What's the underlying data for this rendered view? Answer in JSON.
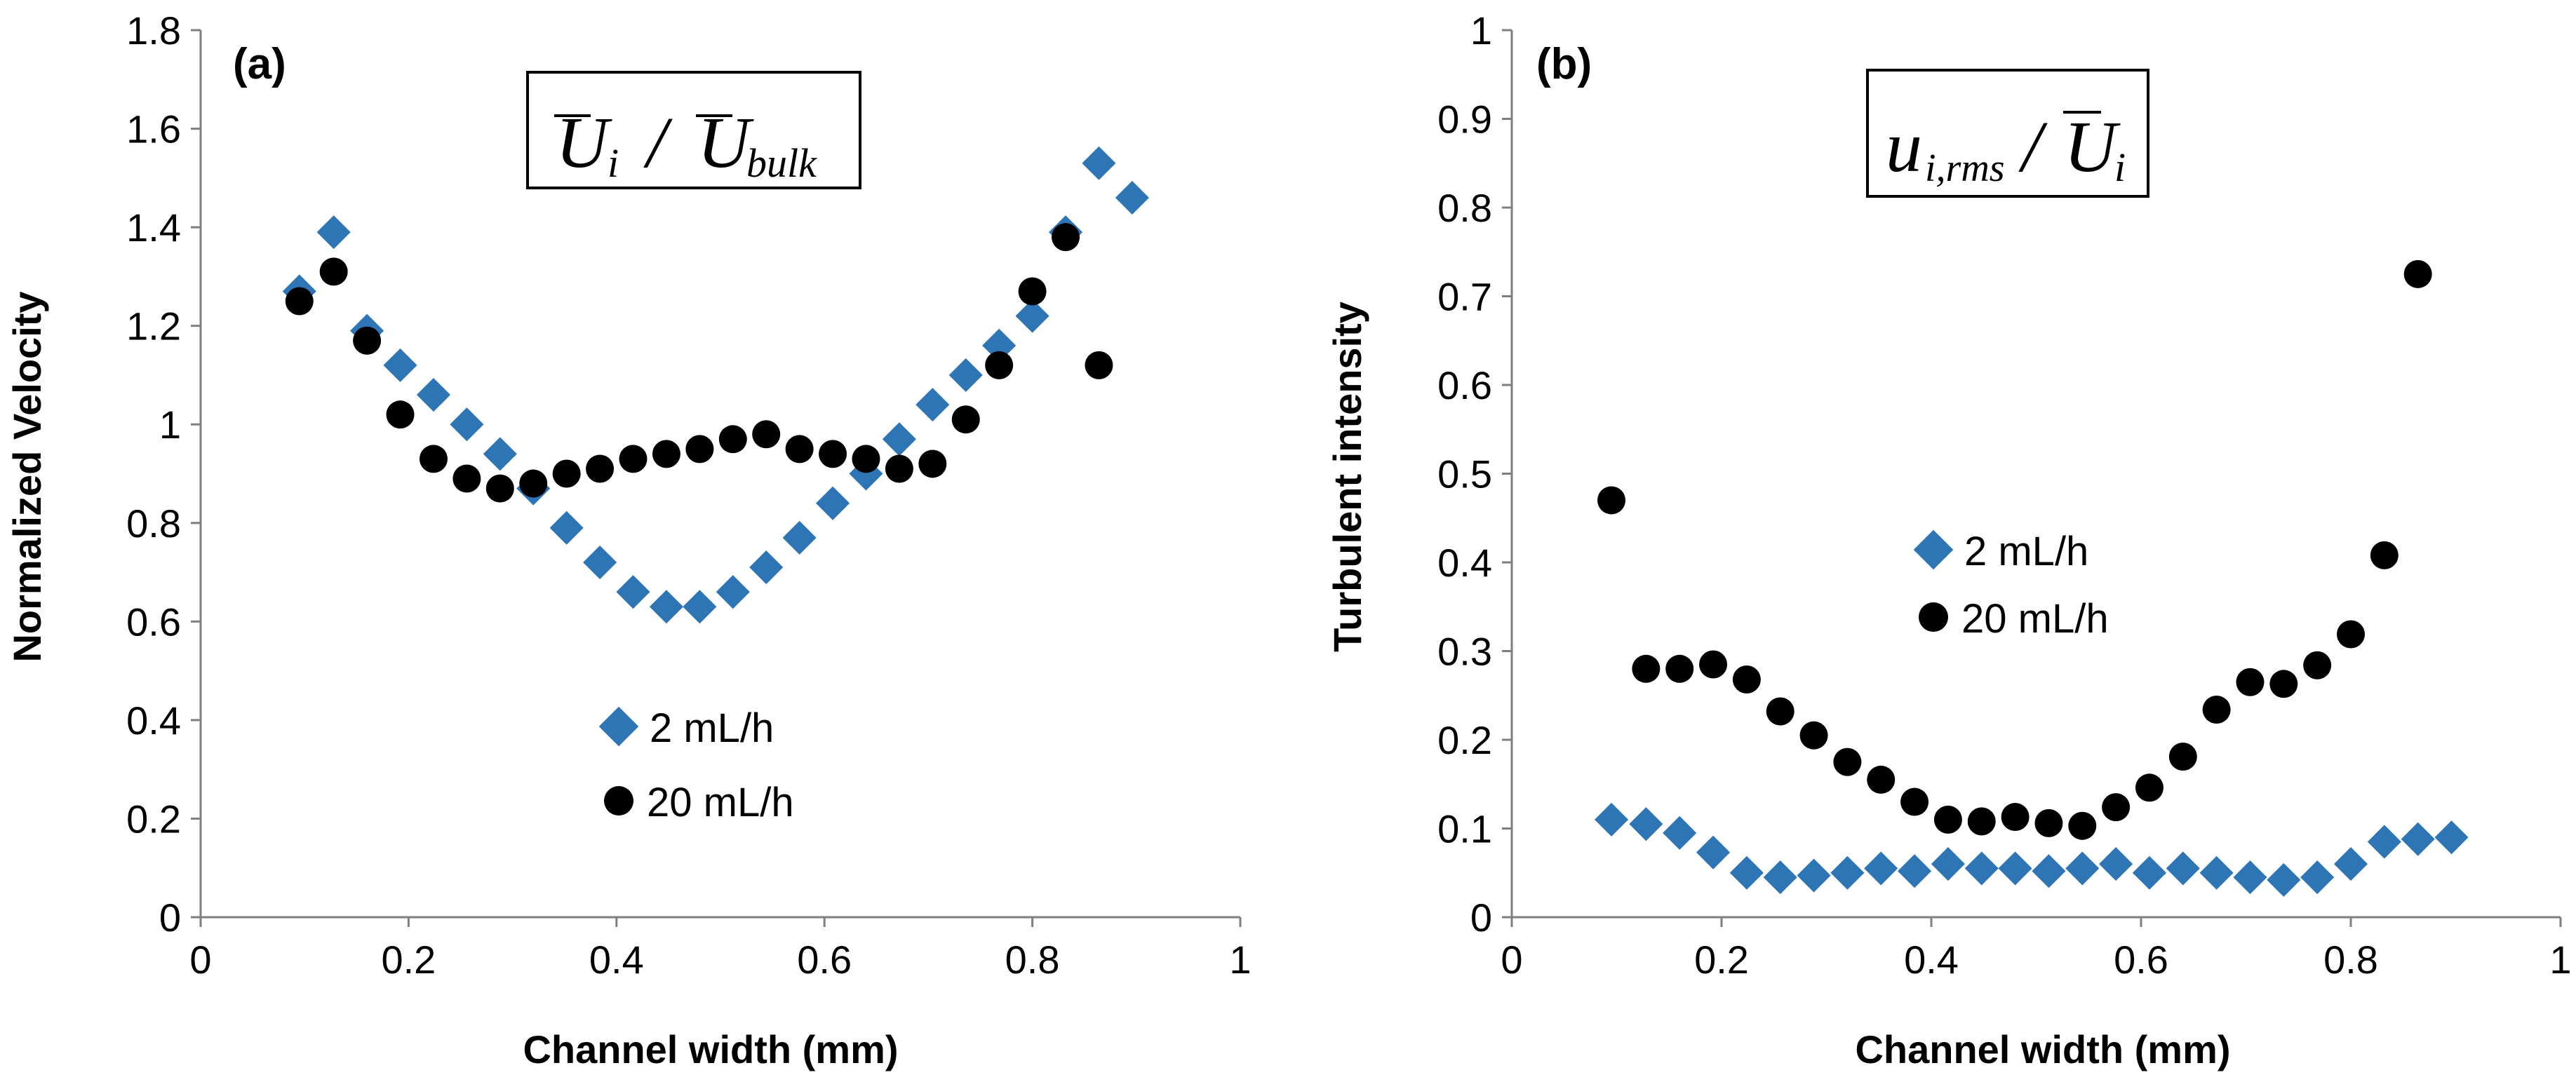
{
  "chart_data": [
    {
      "type": "scatter",
      "panel_label": "(a)",
      "formula": {
        "main1": "U",
        "sub1": "i",
        "slash": "/",
        "main2": "U",
        "sub2": "bulk"
      },
      "xlabel": "Channel width (mm)",
      "ylabel": "Normalized Velocity",
      "xlim": [
        0,
        1
      ],
      "ylim": [
        0,
        1.8
      ],
      "xticks": [
        "0",
        "0.2",
        "0.4",
        "0.6",
        "0.8",
        "1"
      ],
      "yticks": [
        "0",
        "0.2",
        "0.4",
        "0.6",
        "0.8",
        "1",
        "1.2",
        "1.4",
        "1.6",
        "1.8"
      ],
      "xtick_values": [
        0,
        0.2,
        0.4,
        0.6,
        0.8,
        1
      ],
      "ytick_values": [
        0,
        0.2,
        0.4,
        0.6,
        0.8,
        1,
        1.2,
        1.4,
        1.6,
        1.8
      ],
      "legend_position": "center-bottom",
      "series": [
        {
          "name": "2 mL/h",
          "marker": "diamond",
          "color": "#2E75B6",
          "x": [
            0.095,
            0.128,
            0.16,
            0.192,
            0.224,
            0.256,
            0.288,
            0.32,
            0.352,
            0.384,
            0.416,
            0.448,
            0.48,
            0.512,
            0.544,
            0.576,
            0.608,
            0.64,
            0.672,
            0.704,
            0.736,
            0.768,
            0.8,
            0.832,
            0.864,
            0.896
          ],
          "y": [
            1.27,
            1.39,
            1.19,
            1.12,
            1.06,
            1.0,
            0.94,
            0.87,
            0.79,
            0.72,
            0.66,
            0.63,
            0.63,
            0.66,
            0.71,
            0.77,
            0.84,
            0.9,
            0.97,
            1.04,
            1.1,
            1.16,
            1.22,
            1.39,
            1.53,
            1.46
          ]
        },
        {
          "name": "20 mL/h",
          "marker": "circle",
          "color": "#000000",
          "x": [
            0.095,
            0.128,
            0.16,
            0.192,
            0.224,
            0.256,
            0.288,
            0.32,
            0.352,
            0.384,
            0.416,
            0.448,
            0.48,
            0.512,
            0.544,
            0.576,
            0.608,
            0.64,
            0.672,
            0.704,
            0.736,
            0.768,
            0.8,
            0.832,
            0.864
          ],
          "y": [
            1.25,
            1.31,
            1.17,
            1.02,
            0.93,
            0.89,
            0.87,
            0.88,
            0.9,
            0.91,
            0.93,
            0.94,
            0.95,
            0.97,
            0.98,
            0.95,
            0.94,
            0.93,
            0.91,
            0.92,
            1.01,
            1.12,
            1.27,
            1.38,
            1.12
          ]
        }
      ]
    },
    {
      "type": "scatter",
      "panel_label": "(b)",
      "formula": {
        "main1": "u",
        "sub1": "i,rms",
        "slash": "/",
        "main2": "U",
        "sub2": "i"
      },
      "xlabel": "Channel width (mm)",
      "ylabel": "Turbulent intensity",
      "xlim": [
        0,
        1
      ],
      "ylim": [
        0,
        1
      ],
      "xticks": [
        "0",
        "0.2",
        "0.4",
        "0.6",
        "0.8",
        "1"
      ],
      "yticks": [
        "0",
        "0.1",
        "0.2",
        "0.3",
        "0.4",
        "0.5",
        "0.6",
        "0.7",
        "0.8",
        "0.9",
        "1"
      ],
      "xtick_values": [
        0,
        0.2,
        0.4,
        0.6,
        0.8,
        1
      ],
      "ytick_values": [
        0,
        0.1,
        0.2,
        0.3,
        0.4,
        0.5,
        0.6,
        0.7,
        0.8,
        0.9,
        1
      ],
      "legend_position": "center",
      "series": [
        {
          "name": "2 mL/h",
          "marker": "diamond",
          "color": "#2E75B6",
          "x": [
            0.095,
            0.128,
            0.16,
            0.192,
            0.224,
            0.256,
            0.288,
            0.32,
            0.352,
            0.384,
            0.416,
            0.448,
            0.48,
            0.512,
            0.544,
            0.576,
            0.608,
            0.64,
            0.672,
            0.704,
            0.736,
            0.768,
            0.8,
            0.832,
            0.864,
            0.896
          ],
          "y": [
            0.11,
            0.105,
            0.095,
            0.073,
            0.05,
            0.045,
            0.047,
            0.05,
            0.055,
            0.052,
            0.06,
            0.055,
            0.055,
            0.052,
            0.055,
            0.06,
            0.05,
            0.055,
            0.05,
            0.045,
            0.042,
            0.045,
            0.06,
            0.085,
            0.088,
            0.09
          ]
        },
        {
          "name": "20 mL/h",
          "marker": "circle",
          "color": "#000000",
          "x": [
            0.095,
            0.128,
            0.16,
            0.192,
            0.224,
            0.256,
            0.288,
            0.32,
            0.352,
            0.384,
            0.416,
            0.448,
            0.48,
            0.512,
            0.544,
            0.576,
            0.608,
            0.64,
            0.672,
            0.704,
            0.736,
            0.768,
            0.8,
            0.832,
            0.864
          ],
          "y": [
            0.47,
            0.28,
            0.28,
            0.285,
            0.268,
            0.232,
            0.205,
            0.175,
            0.155,
            0.13,
            0.11,
            0.108,
            0.113,
            0.106,
            0.103,
            0.124,
            0.146,
            0.181,
            0.234,
            0.265,
            0.263,
            0.284,
            0.319,
            0.408,
            0.725
          ]
        }
      ]
    }
  ]
}
